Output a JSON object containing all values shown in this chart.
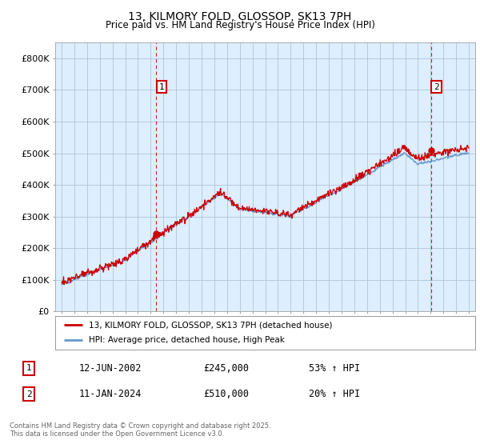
{
  "title": "13, KILMORY FOLD, GLOSSOP, SK13 7PH",
  "subtitle": "Price paid vs. HM Land Registry's House Price Index (HPI)",
  "background_color": "#ffffff",
  "plot_bg_color": "#ddeeff",
  "grid_color": "#b0c4d8",
  "hpi_line_color": "#6699cc",
  "price_line_color": "#cc0000",
  "sale1_x": 2002.45,
  "sale1_price": 245000,
  "sale2_x": 2024.03,
  "sale2_price": 510000,
  "ylim": [
    0,
    850000
  ],
  "xlim": [
    1994.5,
    2027.5
  ],
  "yticks": [
    0,
    100000,
    200000,
    300000,
    400000,
    500000,
    600000,
    700000,
    800000
  ],
  "ytick_labels": [
    "£0",
    "£100K",
    "£200K",
    "£300K",
    "£400K",
    "£500K",
    "£600K",
    "£700K",
    "£800K"
  ],
  "xticks": [
    1995,
    1996,
    1997,
    1998,
    1999,
    2000,
    2001,
    2002,
    2003,
    2004,
    2005,
    2006,
    2007,
    2008,
    2009,
    2010,
    2011,
    2012,
    2013,
    2014,
    2015,
    2016,
    2017,
    2018,
    2019,
    2020,
    2021,
    2022,
    2023,
    2024,
    2025,
    2026,
    2027
  ],
  "legend_label_price": "13, KILMORY FOLD, GLOSSOP, SK13 7PH (detached house)",
  "legend_label_hpi": "HPI: Average price, detached house, High Peak",
  "footnote": "Contains HM Land Registry data © Crown copyright and database right 2025.\nThis data is licensed under the Open Government Licence v3.0.",
  "table_rows": [
    [
      "1",
      "12-JUN-2002",
      "£245,000",
      "53% ↑ HPI"
    ],
    [
      "2",
      "11-JAN-2024",
      "£510,000",
      "20% ↑ HPI"
    ]
  ]
}
